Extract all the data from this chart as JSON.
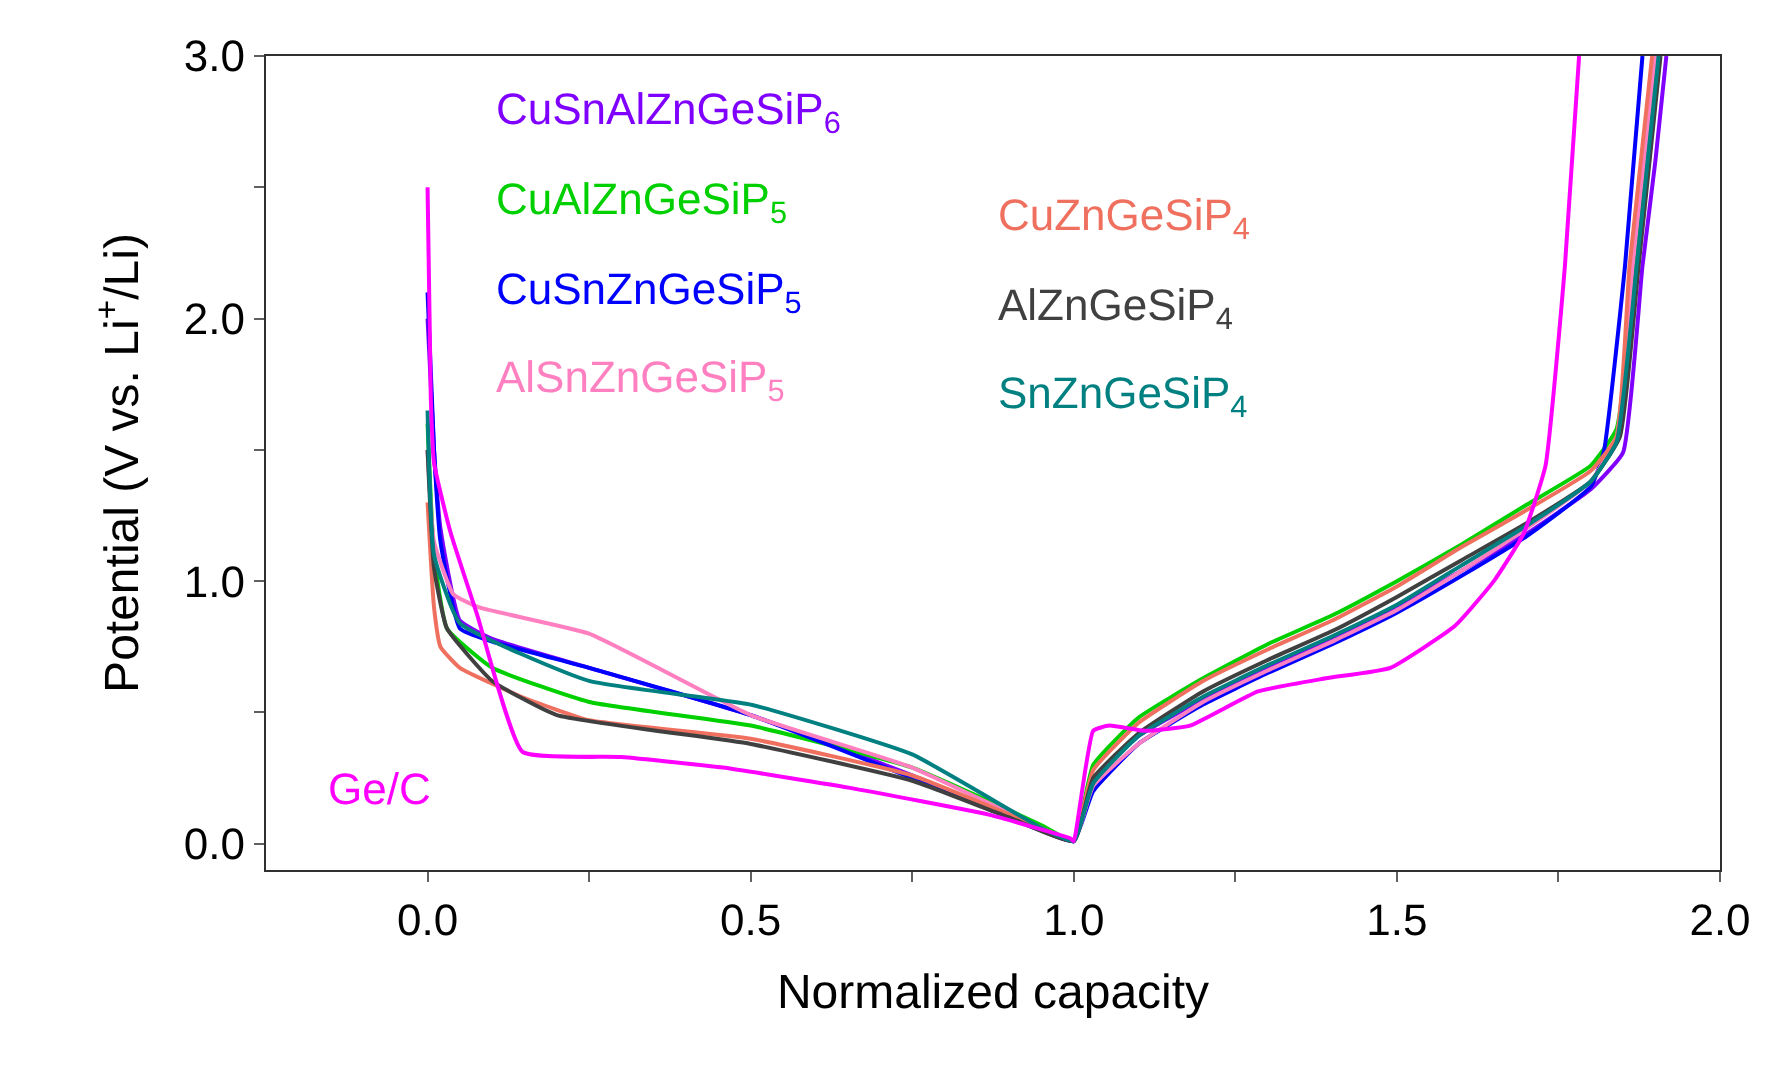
{
  "chart_data": {
    "type": "line",
    "xlabel": "Normalized capacity",
    "ylabel": "Potential (V vs. Li$^{+}$/Li)",
    "xlim": [
      -0.25,
      2.0
    ],
    "ylim": [
      -0.1,
      3.0
    ],
    "xticks": [
      {
        "value": 0,
        "label": "0.0"
      },
      {
        "value": 0.25,
        "label": null
      },
      {
        "value": 0.5,
        "label": "0.5"
      },
      {
        "value": 0.75,
        "label": null
      },
      {
        "value": 1,
        "label": "1.0"
      },
      {
        "value": 1.25,
        "label": null
      },
      {
        "value": 1.5,
        "label": "1.5"
      },
      {
        "value": 1.75,
        "label": null
      },
      {
        "value": 2,
        "label": "2.0"
      }
    ],
    "yticks": [
      {
        "value": 0,
        "label": "0.0"
      },
      {
        "value": 0.5,
        "label": null
      },
      {
        "value": 1,
        "label": "1.0"
      },
      {
        "value": 1.5,
        "label": null
      },
      {
        "value": 2,
        "label": "2.0"
      },
      {
        "value": 2.5,
        "label": null
      },
      {
        "value": 3,
        "label": "3.0"
      }
    ],
    "legend": false,
    "marker": "none",
    "line_style": "solid",
    "series": [
      {
        "name": "CuSnAlZnGeSiP$_{6}$",
        "color": "#8000ff",
        "x": [
          0,
          0.01,
          0.02,
          0.05,
          0.1,
          0.25,
          0.5,
          0.75,
          0.95,
          1.0,
          1.03,
          1.1,
          1.2,
          1.3,
          1.4,
          1.5,
          1.6,
          1.7,
          1.8,
          1.85,
          1.88,
          1.9,
          1.917
        ],
        "values": [
          2.0,
          1.5,
          1.2,
          0.85,
          0.78,
          0.67,
          0.49,
          0.26,
          0.05,
          0.01,
          0.24,
          0.41,
          0.55,
          0.67,
          0.78,
          0.9,
          1.04,
          1.18,
          1.35,
          1.49,
          2.2,
          2.6,
          3.0
        ]
      },
      {
        "name": "CuAlZnGeSiP$_{5}$",
        "color": "#00d000",
        "x": [
          0,
          0.01,
          0.03,
          0.1,
          0.25,
          0.5,
          0.75,
          0.95,
          1.0,
          1.03,
          1.1,
          1.2,
          1.3,
          1.4,
          1.5,
          1.6,
          1.7,
          1.8,
          1.84,
          1.87,
          1.9
        ],
        "values": [
          1.6,
          1.1,
          0.82,
          0.67,
          0.54,
          0.45,
          0.29,
          0.07,
          0.01,
          0.3,
          0.48,
          0.63,
          0.76,
          0.87,
          1.0,
          1.14,
          1.29,
          1.44,
          1.58,
          2.2,
          3.0
        ]
      },
      {
        "name": "CuSnZnGeSiP$_{5}$",
        "color": "#0000ff",
        "x": [
          0,
          0.01,
          0.02,
          0.05,
          0.1,
          0.25,
          0.5,
          0.75,
          0.95,
          1.0,
          1.03,
          1.1,
          1.2,
          1.3,
          1.4,
          1.5,
          1.6,
          1.7,
          1.8,
          1.82,
          1.853,
          1.88
        ],
        "values": [
          2.1,
          1.5,
          1.15,
          0.82,
          0.77,
          0.67,
          0.49,
          0.25,
          0.05,
          0.01,
          0.2,
          0.38,
          0.53,
          0.65,
          0.76,
          0.88,
          1.02,
          1.17,
          1.36,
          1.49,
          2.2,
          3.0
        ]
      },
      {
        "name": "AlSnZnGeSiP$_{5}$",
        "color": "#ff80c0",
        "x": [
          0,
          0.01,
          0.04,
          0.08,
          0.25,
          0.5,
          0.75,
          0.95,
          1.0,
          1.03,
          1.1,
          1.2,
          1.3,
          1.4,
          1.5,
          1.6,
          1.7,
          1.8,
          1.84,
          1.865,
          1.9
        ],
        "values": [
          1.5,
          1.15,
          0.95,
          0.9,
          0.8,
          0.49,
          0.29,
          0.06,
          0.01,
          0.22,
          0.38,
          0.54,
          0.66,
          0.77,
          0.89,
          1.04,
          1.2,
          1.38,
          1.55,
          2.2,
          3.0
        ]
      },
      {
        "name": "CuZnGeSiP$_{4}$",
        "color": "#f07060",
        "x": [
          0,
          0.01,
          0.02,
          0.05,
          0.15,
          0.25,
          0.5,
          0.75,
          0.95,
          1.0,
          1.03,
          1.1,
          1.2,
          1.3,
          1.4,
          1.5,
          1.6,
          1.7,
          1.8,
          1.84,
          1.86,
          1.895
        ],
        "values": [
          1.3,
          0.9,
          0.75,
          0.67,
          0.555,
          0.47,
          0.4,
          0.26,
          0.06,
          0.01,
          0.28,
          0.46,
          0.62,
          0.74,
          0.85,
          0.98,
          1.13,
          1.27,
          1.42,
          1.55,
          2.2,
          3.0
        ]
      },
      {
        "name": "AlZnGeSiP$_{4}$",
        "color": "#404040",
        "x": [
          0,
          0.01,
          0.03,
          0.1,
          0.2,
          0.5,
          0.75,
          0.9,
          1.0,
          1.03,
          1.1,
          1.2,
          1.3,
          1.4,
          1.5,
          1.6,
          1.7,
          1.8,
          1.845,
          1.874,
          1.908
        ],
        "values": [
          1.5,
          1.05,
          0.82,
          0.62,
          0.49,
          0.38,
          0.24,
          0.1,
          0.01,
          0.25,
          0.42,
          0.58,
          0.7,
          0.81,
          0.94,
          1.08,
          1.22,
          1.38,
          1.55,
          2.2,
          3.0
        ]
      },
      {
        "name": "SnZnGeSiP$_{4}$",
        "color": "#008080",
        "x": [
          0,
          0.01,
          0.05,
          0.25,
          0.5,
          0.75,
          0.95,
          1.0,
          1.03,
          1.1,
          1.2,
          1.3,
          1.4,
          1.5,
          1.6,
          1.7,
          1.8,
          1.84,
          1.871,
          1.905
        ],
        "values": [
          1.65,
          1.1,
          0.84,
          0.62,
          0.53,
          0.34,
          0.06,
          0.01,
          0.23,
          0.41,
          0.56,
          0.68,
          0.79,
          0.91,
          1.06,
          1.21,
          1.38,
          1.53,
          2.2,
          3.0
        ]
      },
      {
        "name": "Ge/C",
        "color": "#ff00ff",
        "x": [
          0,
          0.005,
          0.01,
          0.035,
          0.077,
          0.147,
          0.3,
          0.457,
          0.66,
          0.87,
          0.995,
          1.0,
          1.03,
          1.055,
          1.11,
          1.18,
          1.285,
          1.39,
          1.49,
          1.59,
          1.65,
          1.696,
          1.73,
          1.76,
          1.782
        ],
        "values": [
          2.5,
          1.7,
          1.45,
          1.19,
          0.87,
          0.35,
          0.33,
          0.29,
          0.21,
          0.11,
          0.02,
          0.01,
          0.43,
          0.45,
          0.43,
          0.45,
          0.58,
          0.63,
          0.67,
          0.83,
          1.0,
          1.18,
          1.44,
          2.2,
          3.0
        ]
      }
    ]
  }
}
